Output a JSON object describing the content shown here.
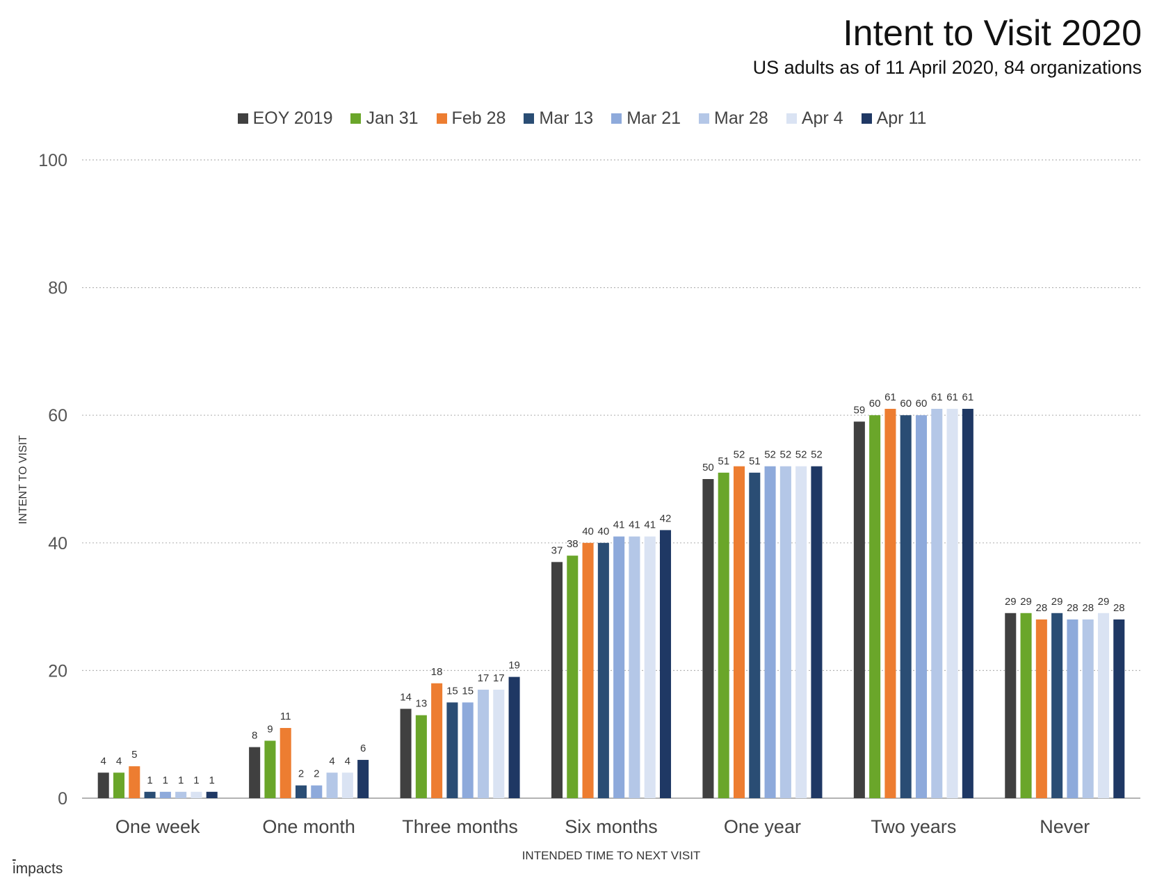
{
  "chart_data": {
    "type": "bar",
    "title": "Intent to Visit 2020",
    "subtitle": "US adults as of 11 April 2020, 84 organizations",
    "xlabel": "INTENDED TIME TO NEXT VISIT",
    "ylabel": "INTENT TO VISIT",
    "ylim": [
      0,
      100
    ],
    "yticks": [
      0,
      20,
      40,
      60,
      80,
      100
    ],
    "grid": true,
    "legend_position": "top",
    "categories": [
      "One week",
      "One month",
      "Three months",
      "Six months",
      "One year",
      "Two years",
      "Never"
    ],
    "series": [
      {
        "name": "EOY 2019",
        "color": "#404040",
        "values": [
          4,
          8,
          14,
          37,
          50,
          59,
          29
        ]
      },
      {
        "name": "Jan 31",
        "color": "#6aa62a",
        "values": [
          4,
          9,
          13,
          38,
          51,
          60,
          29
        ]
      },
      {
        "name": "Feb 28",
        "color": "#ed7d31",
        "values": [
          5,
          11,
          18,
          40,
          52,
          61,
          28
        ]
      },
      {
        "name": "Mar 13",
        "color": "#2a4d74",
        "values": [
          1,
          2,
          15,
          40,
          51,
          60,
          29
        ]
      },
      {
        "name": "Mar 21",
        "color": "#8eaadb",
        "values": [
          1,
          2,
          15,
          41,
          52,
          60,
          28
        ]
      },
      {
        "name": "Mar 28",
        "color": "#b4c7e7",
        "values": [
          1,
          4,
          17,
          41,
          52,
          61,
          28
        ]
      },
      {
        "name": "Apr 4",
        "color": "#dae3f3",
        "values": [
          1,
          4,
          17,
          41,
          52,
          61,
          29
        ]
      },
      {
        "name": "Apr 11",
        "color": "#1f3864",
        "values": [
          1,
          6,
          19,
          42,
          52,
          61,
          28
        ]
      }
    ]
  },
  "footer": {
    "logo_icon": "i",
    "logo_text": "mpacts"
  }
}
